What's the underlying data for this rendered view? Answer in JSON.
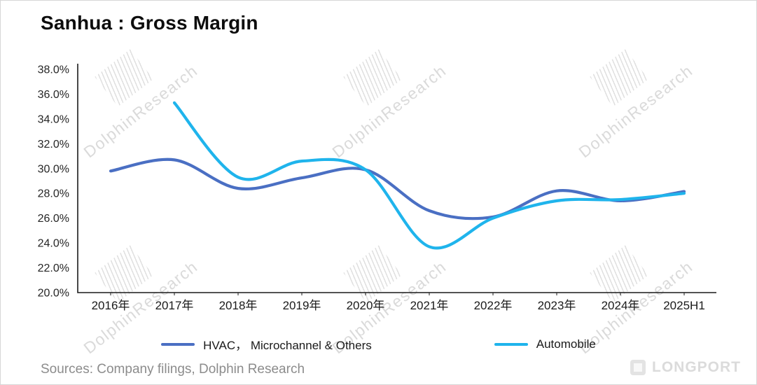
{
  "title": "Sanhua : Gross Margin",
  "watermark": "DolphinResearch",
  "footer": {
    "sources": "Sources: Company filings, Dolphin Research",
    "brand": "LONGPORT"
  },
  "chart_data": {
    "type": "line",
    "title": "Sanhua : Gross Margin",
    "categories": [
      "2016年",
      "2017年",
      "2018年",
      "2019年",
      "2020年",
      "2021年",
      "2022年",
      "2023年",
      "2024年",
      "2025H1"
    ],
    "series": [
      {
        "name": "HVAC， Microchannel & Others",
        "color": "#4a6fc3",
        "values": [
          29.8,
          30.7,
          28.4,
          29.25,
          29.9,
          26.6,
          26.1,
          28.2,
          27.4,
          28.15
        ]
      },
      {
        "name": "Automobile",
        "color": "#1fb4ec",
        "values": [
          null,
          35.3,
          29.3,
          30.6,
          29.9,
          23.7,
          26.0,
          27.4,
          27.5,
          28.0
        ]
      }
    ],
    "xlabel": "",
    "ylabel": "",
    "ylim": [
      20.0,
      38.0
    ],
    "ytick_step": 2.0,
    "ytick_format": "percent_1dp",
    "grid": false,
    "legend_position": "bottom"
  }
}
